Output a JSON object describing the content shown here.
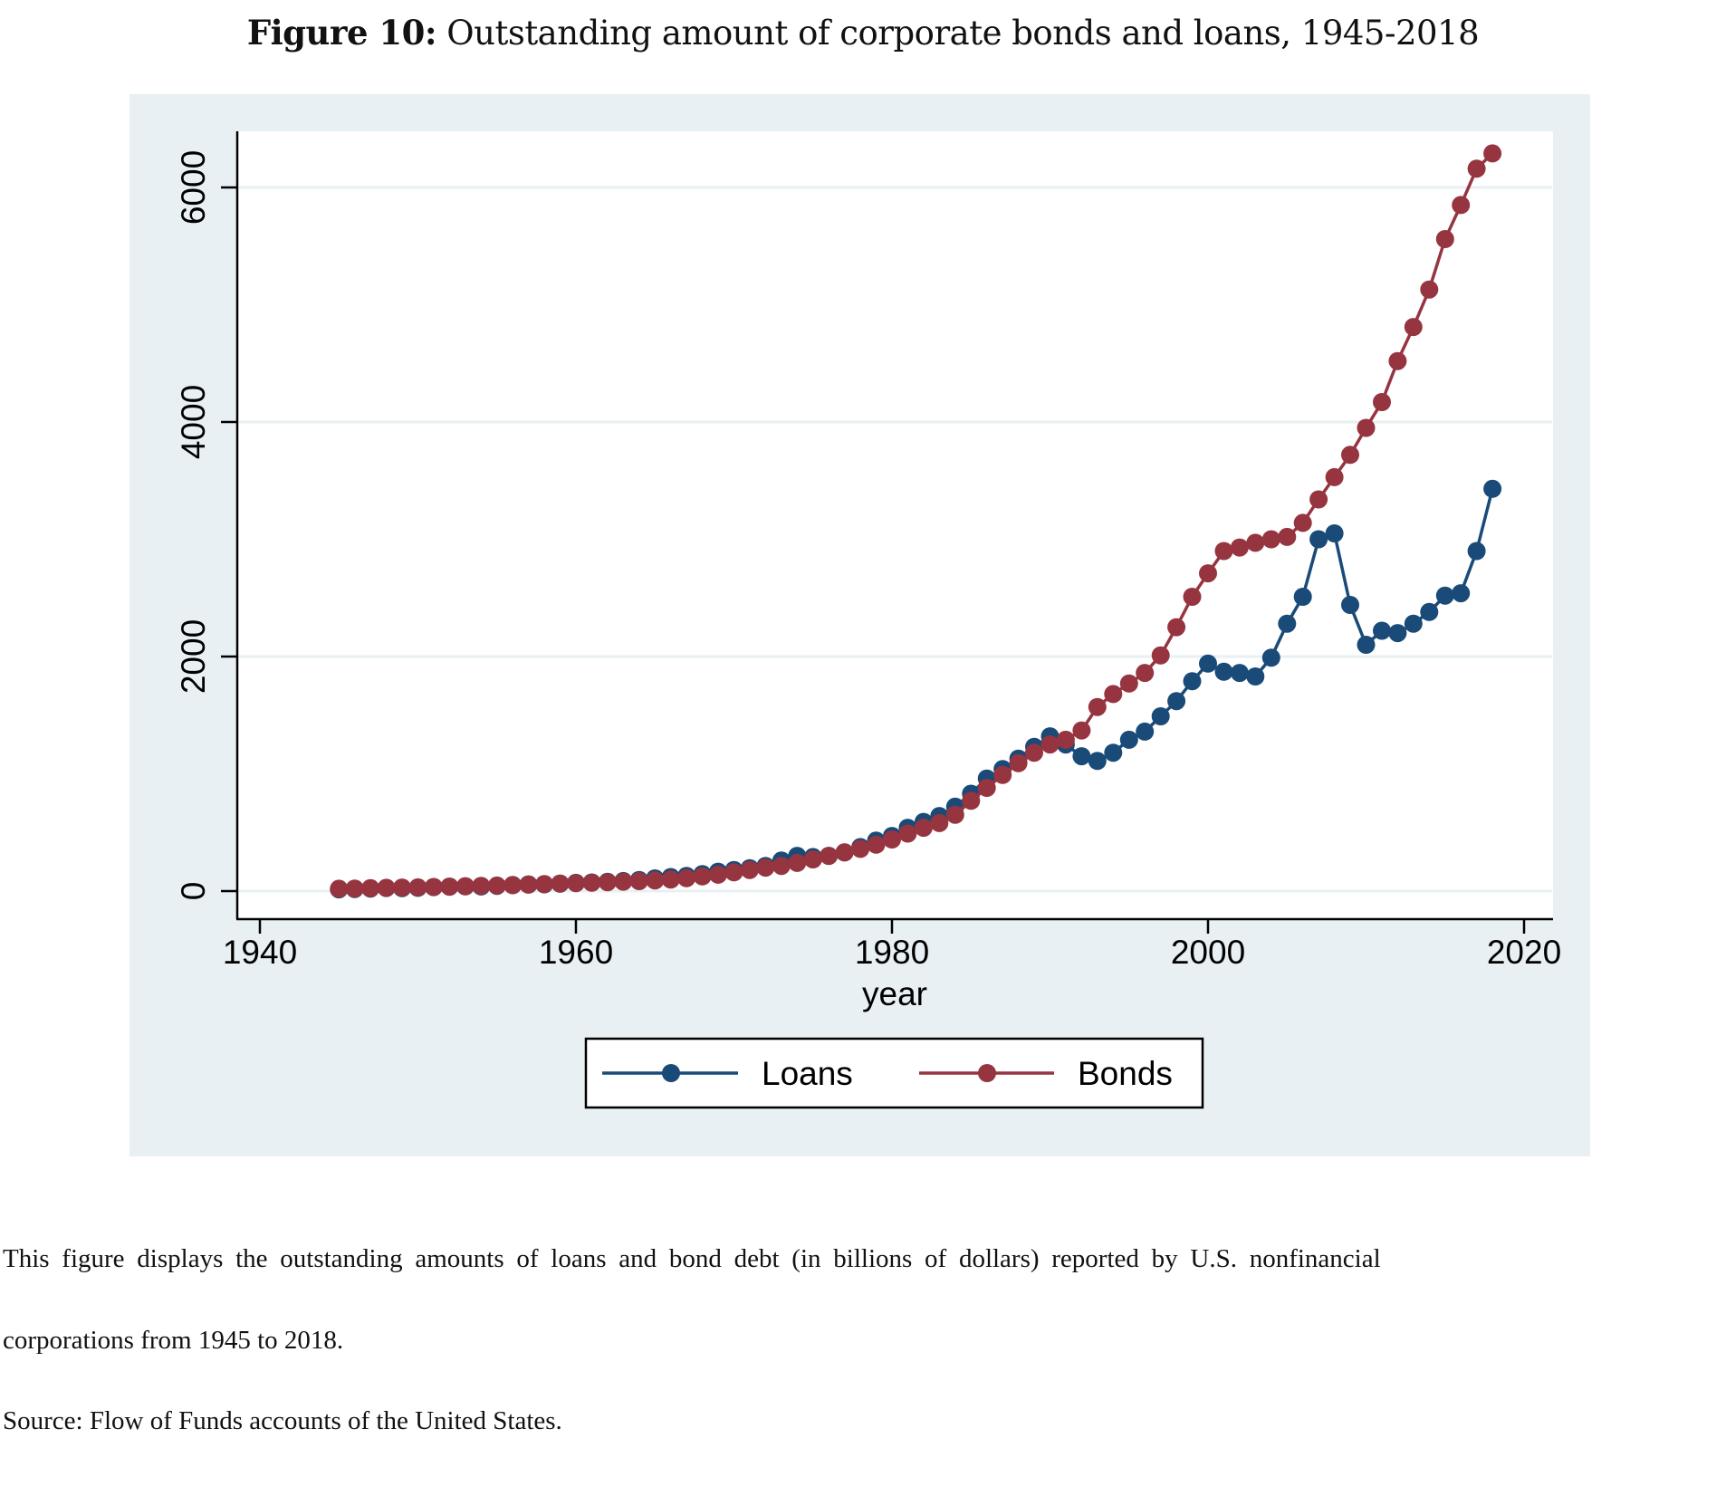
{
  "figure": {
    "label": "Figure 10:",
    "title": "Outstanding amount of corporate bonds and loans, 1945-2018"
  },
  "caption": {
    "line1": "This figure displays the outstanding amounts of loans and bond debt (in billions of dollars) reported by U.S. nonfinancial",
    "line2": "corporations from 1945 to 2018.",
    "source": "Source: Flow of Funds accounts of the United States."
  },
  "colors": {
    "panel_bg": "#e8f0f3",
    "plot_bg": "#ffffff",
    "grid": "#e8f0f3",
    "loans": "#1a4a78",
    "bonds": "#963540"
  },
  "chart_data": {
    "type": "line",
    "title": "Outstanding amount of corporate bonds and loans, 1945-2018",
    "xlabel": "year",
    "ylabel": "",
    "xlim": [
      1938,
      2021
    ],
    "ylim": [
      -200,
      6500
    ],
    "xticks": [
      1940,
      1960,
      1980,
      2000,
      2020
    ],
    "yticks": [
      0,
      2000,
      4000,
      6000
    ],
    "grid": true,
    "legend": {
      "position": "bottom",
      "entries": [
        "Loans",
        "Bonds"
      ]
    },
    "x": [
      1945,
      1946,
      1947,
      1948,
      1949,
      1950,
      1951,
      1952,
      1953,
      1954,
      1955,
      1956,
      1957,
      1958,
      1959,
      1960,
      1961,
      1962,
      1963,
      1964,
      1965,
      1966,
      1967,
      1968,
      1969,
      1970,
      1971,
      1972,
      1973,
      1974,
      1975,
      1976,
      1977,
      1978,
      1979,
      1980,
      1981,
      1982,
      1983,
      1984,
      1985,
      1986,
      1987,
      1988,
      1989,
      1990,
      1991,
      1992,
      1993,
      1994,
      1995,
      1996,
      1997,
      1998,
      1999,
      2000,
      2001,
      2002,
      2003,
      2004,
      2005,
      2006,
      2007,
      2008,
      2009,
      2010,
      2011,
      2012,
      2013,
      2014,
      2015,
      2016,
      2017,
      2018
    ],
    "series": [
      {
        "name": "Loans",
        "values": [
          15,
          18,
          22,
          26,
          25,
          28,
          34,
          38,
          40,
          39,
          45,
          52,
          57,
          58,
          64,
          70,
          73,
          79,
          86,
          95,
          108,
          120,
          130,
          145,
          165,
          180,
          195,
          215,
          260,
          300,
          290,
          300,
          330,
          375,
          430,
          470,
          540,
          590,
          640,
          720,
          830,
          960,
          1040,
          1130,
          1230,
          1320,
          1250,
          1150,
          1110,
          1180,
          1290,
          1360,
          1490,
          1620,
          1790,
          1940,
          1870,
          1860,
          1830,
          1990,
          2280,
          2510,
          3000,
          3050,
          2440,
          2100,
          2220,
          2200,
          2280,
          2380,
          2520,
          2540,
          2900,
          3430
        ]
      },
      {
        "name": "Bonds",
        "values": [
          20,
          22,
          25,
          28,
          30,
          32,
          35,
          38,
          42,
          45,
          47,
          50,
          55,
          60,
          64,
          68,
          72,
          76,
          80,
          85,
          90,
          98,
          110,
          125,
          140,
          160,
          180,
          200,
          215,
          240,
          270,
          300,
          330,
          360,
          395,
          440,
          490,
          540,
          580,
          650,
          770,
          880,
          990,
          1090,
          1180,
          1250,
          1290,
          1370,
          1570,
          1680,
          1770,
          1860,
          2010,
          2250,
          2510,
          2710,
          2900,
          2930,
          2970,
          3000,
          3020,
          3140,
          3340,
          3530,
          3720,
          3950,
          4170,
          4520,
          4810,
          5130,
          5560,
          5850,
          6160,
          6290
        ]
      }
    ]
  }
}
